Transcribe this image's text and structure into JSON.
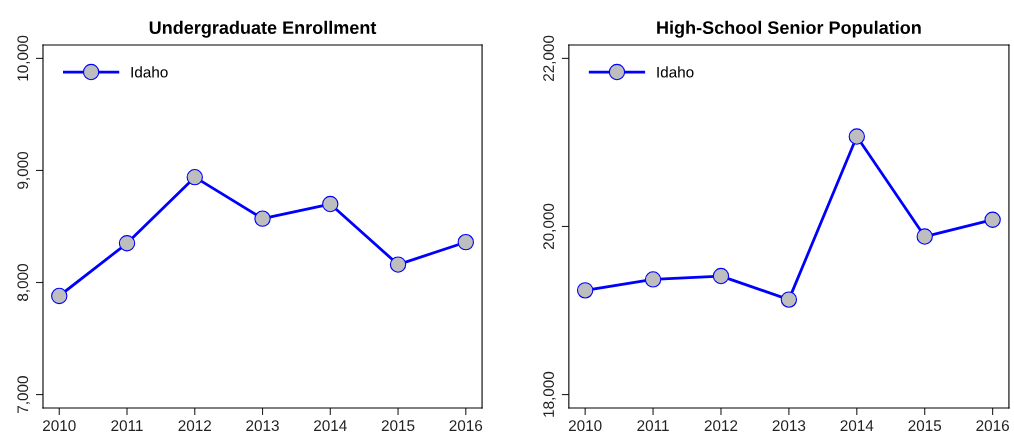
{
  "chart_data": [
    {
      "type": "line",
      "title": "Undergraduate Enrollment",
      "x": [
        2010,
        2011,
        2012,
        2013,
        2014,
        2015,
        2016
      ],
      "series": [
        {
          "name": "Idaho",
          "color": "#0000ff",
          "values": [
            7880,
            8350,
            8940,
            8570,
            8700,
            8160,
            8360
          ]
        }
      ],
      "xlim": [
        2009.76,
        2016.24
      ],
      "xticks": [
        2010,
        2011,
        2012,
        2013,
        2014,
        2015,
        2016
      ],
      "ylim": [
        6880,
        10120
      ],
      "yticks": [
        {
          "value": 7000,
          "label": "7,000"
        },
        {
          "value": 8000,
          "label": "8,000"
        },
        {
          "value": 9000,
          "label": "9,000"
        },
        {
          "value": 10000,
          "label": "10,000"
        }
      ],
      "marker": "circle",
      "line_style": "solid",
      "legend": "top left",
      "grid": false
    },
    {
      "type": "line",
      "title": "High-School Senior Population",
      "x": [
        2010,
        2011,
        2012,
        2013,
        2014,
        2015,
        2016
      ],
      "series": [
        {
          "name": "Idaho",
          "color": "#0000ff",
          "values": [
            19240,
            19370,
            19410,
            19130,
            21070,
            19880,
            20080
          ]
        }
      ],
      "xlim": [
        2009.76,
        2016.24
      ],
      "xticks": [
        2010,
        2011,
        2012,
        2013,
        2014,
        2015,
        2016
      ],
      "ylim": [
        17840,
        22160
      ],
      "yticks": [
        {
          "value": 18000,
          "label": "18,000"
        },
        {
          "value": 20000,
          "label": "20,000"
        },
        {
          "value": 22000,
          "label": "22,000"
        }
      ],
      "marker": "circle",
      "line_style": "solid",
      "legend": "top left",
      "grid": false
    }
  ]
}
